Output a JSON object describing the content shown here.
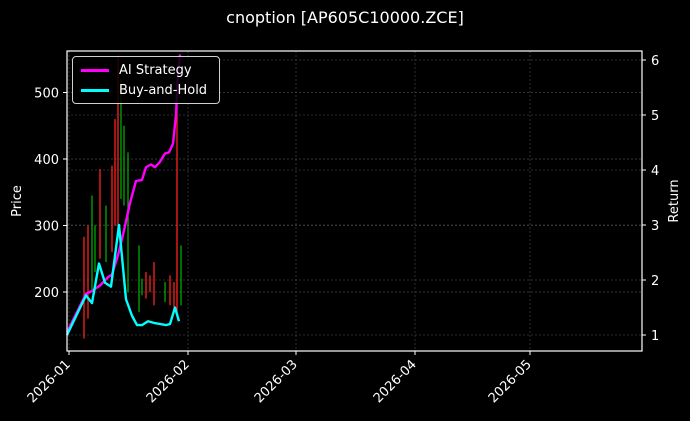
{
  "chart_data": {
    "type": "line",
    "title": "cnoption [AP605C10000.ZCE]",
    "xlabel": "",
    "ylabel": "Price",
    "y2label": "Return",
    "x_tick_labels": [
      "2026-01",
      "2026-02",
      "2026-03",
      "2026-04",
      "2026-05"
    ],
    "y_ticks": [
      200,
      300,
      400,
      500
    ],
    "y2_ticks": [
      1,
      2,
      3,
      4,
      5,
      6
    ],
    "ylim": [
      112,
      562
    ],
    "y2lim": [
      0.7,
      6.15
    ],
    "grid": true,
    "legend_position": "upper left",
    "candlesticks": {
      "up_color": "#00aa00",
      "down_color": "#ff2020",
      "bars": [
        {
          "x": 84,
          "low": 130,
          "high": 283,
          "dir": "down"
        },
        {
          "x": 88,
          "low": 160,
          "high": 300,
          "dir": "down"
        },
        {
          "x": 92,
          "low": 200,
          "high": 345,
          "dir": "up"
        },
        {
          "x": 95,
          "low": 230,
          "high": 300,
          "dir": "up"
        },
        {
          "x": 100,
          "low": 250,
          "high": 385,
          "dir": "down"
        },
        {
          "x": 106,
          "low": 245,
          "high": 330,
          "dir": "up"
        },
        {
          "x": 112,
          "low": 260,
          "high": 390,
          "dir": "down"
        },
        {
          "x": 115,
          "low": 300,
          "high": 460,
          "dir": "down"
        },
        {
          "x": 118,
          "low": 280,
          "high": 555,
          "dir": "down"
        },
        {
          "x": 121,
          "low": 340,
          "high": 520,
          "dir": "up"
        },
        {
          "x": 124,
          "low": 330,
          "high": 450,
          "dir": "up"
        },
        {
          "x": 128,
          "low": 200,
          "high": 410,
          "dir": "up"
        },
        {
          "x": 139,
          "low": 170,
          "high": 270,
          "dir": "up"
        },
        {
          "x": 142,
          "low": 195,
          "high": 220,
          "dir": "up"
        },
        {
          "x": 146,
          "low": 190,
          "high": 230,
          "dir": "down"
        },
        {
          "x": 150,
          "low": 200,
          "high": 225,
          "dir": "down"
        },
        {
          "x": 154,
          "low": 180,
          "high": 245,
          "dir": "down"
        },
        {
          "x": 165,
          "low": 185,
          "high": 215,
          "dir": "up"
        },
        {
          "x": 170,
          "low": 180,
          "high": 225,
          "dir": "down"
        },
        {
          "x": 174,
          "low": 170,
          "high": 215,
          "dir": "down"
        },
        {
          "x": 177,
          "low": 170,
          "high": 505,
          "dir": "down"
        },
        {
          "x": 181,
          "low": 180,
          "high": 270,
          "dir": "up"
        }
      ]
    },
    "series": [
      {
        "name": "AI Strategy",
        "color": "#ff00ff",
        "axis": "right",
        "points": [
          [
            67,
            1.05
          ],
          [
            86,
            1.75
          ],
          [
            92,
            1.8
          ],
          [
            100,
            1.9
          ],
          [
            108,
            2.05
          ],
          [
            112,
            2.1
          ],
          [
            118,
            2.45
          ],
          [
            124,
            2.9
          ],
          [
            130,
            3.4
          ],
          [
            136,
            3.8
          ],
          [
            142,
            3.82
          ],
          [
            146,
            4.05
          ],
          [
            151,
            4.1
          ],
          [
            155,
            4.05
          ],
          [
            160,
            4.15
          ],
          [
            165,
            4.3
          ],
          [
            169,
            4.32
          ],
          [
            173,
            4.48
          ],
          [
            176,
            5.0
          ],
          [
            178,
            5.8
          ],
          [
            180,
            6.1
          ]
        ]
      },
      {
        "name": "Buy-and-Hold",
        "color": "#00ffff",
        "axis": "right",
        "points": [
          [
            67,
            1.0
          ],
          [
            86,
            1.72
          ],
          [
            92,
            1.58
          ],
          [
            99,
            2.3
          ],
          [
            105,
            1.95
          ],
          [
            111,
            1.88
          ],
          [
            119,
            3.0
          ],
          [
            126,
            1.65
          ],
          [
            132,
            1.35
          ],
          [
            137,
            1.18
          ],
          [
            142,
            1.18
          ],
          [
            148,
            1.25
          ],
          [
            154,
            1.22
          ],
          [
            160,
            1.2
          ],
          [
            166,
            1.18
          ],
          [
            170,
            1.2
          ],
          [
            175,
            1.5
          ],
          [
            179,
            1.25
          ]
        ]
      }
    ]
  },
  "legend": {
    "items": [
      {
        "label": "AI Strategy",
        "color": "#ff00ff"
      },
      {
        "label": "Buy-and-Hold",
        "color": "#00ffff"
      }
    ]
  },
  "axes": {
    "left_label": "Price",
    "right_label": "Return",
    "left_ticks": [
      "500",
      "400",
      "300",
      "200"
    ],
    "right_ticks": [
      "6",
      "5",
      "4",
      "3",
      "2",
      "1"
    ],
    "x_ticks": [
      "2026-01",
      "2026-02",
      "2026-03",
      "2026-04",
      "2026-05"
    ]
  },
  "title": "cnoption [AP605C10000.ZCE]"
}
